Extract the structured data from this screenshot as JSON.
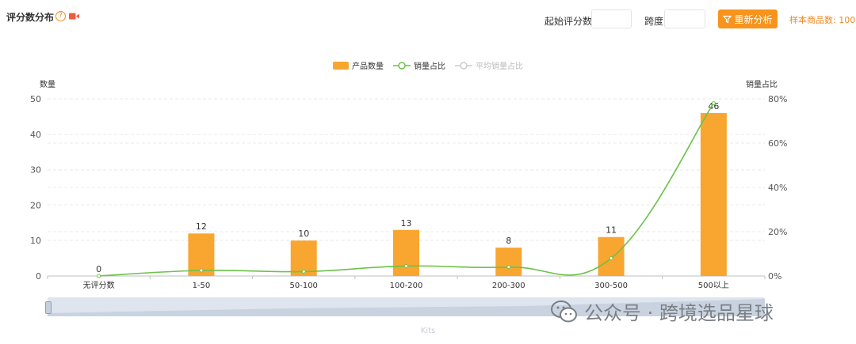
{
  "header": {
    "title": "评分数分布",
    "help_glyph": "?",
    "start_label": "起始评分数",
    "span_label": "跨度",
    "start_value": "",
    "span_value": "",
    "reanalyze_label": "重新分析",
    "sample_text": "样本商品数: 100"
  },
  "legend": {
    "items": [
      {
        "label": "产品数量",
        "color": "#f8a62f",
        "marker": "bar"
      },
      {
        "label": "销量占比",
        "color": "#6cc24a",
        "marker": "line"
      },
      {
        "label": "平均销量占比",
        "color": "#bbbbbb",
        "marker": "line"
      }
    ]
  },
  "zoom": {
    "caption": "Kits"
  },
  "watermark": {
    "text": "公众号 · 跨境选品星球"
  },
  "chart_data": {
    "type": "bar",
    "categories": [
      "无评分数",
      "1-50",
      "50-100",
      "100-200",
      "200-300",
      "300-500",
      "500以上"
    ],
    "series": [
      {
        "name": "产品数量",
        "type": "bar",
        "axis": "left",
        "color": "#f8a62f",
        "values": [
          0,
          12,
          10,
          13,
          8,
          11,
          46
        ]
      },
      {
        "name": "销量占比",
        "type": "line",
        "axis": "right",
        "color": "#6cc24a",
        "values": [
          0,
          2.5,
          2,
          4.5,
          4,
          8,
          78
        ]
      }
    ],
    "ylabel_left": "数量",
    "ylabel_right": "销量占比",
    "ylim_left": [
      0,
      50
    ],
    "yticks_left": [
      0,
      10,
      20,
      30,
      40,
      50
    ],
    "ylim_right": [
      0,
      80
    ],
    "yticks_right": [
      "0%",
      "20%",
      "40%",
      "60%",
      "80%"
    ],
    "grid": true,
    "legend_position": "top-center"
  }
}
